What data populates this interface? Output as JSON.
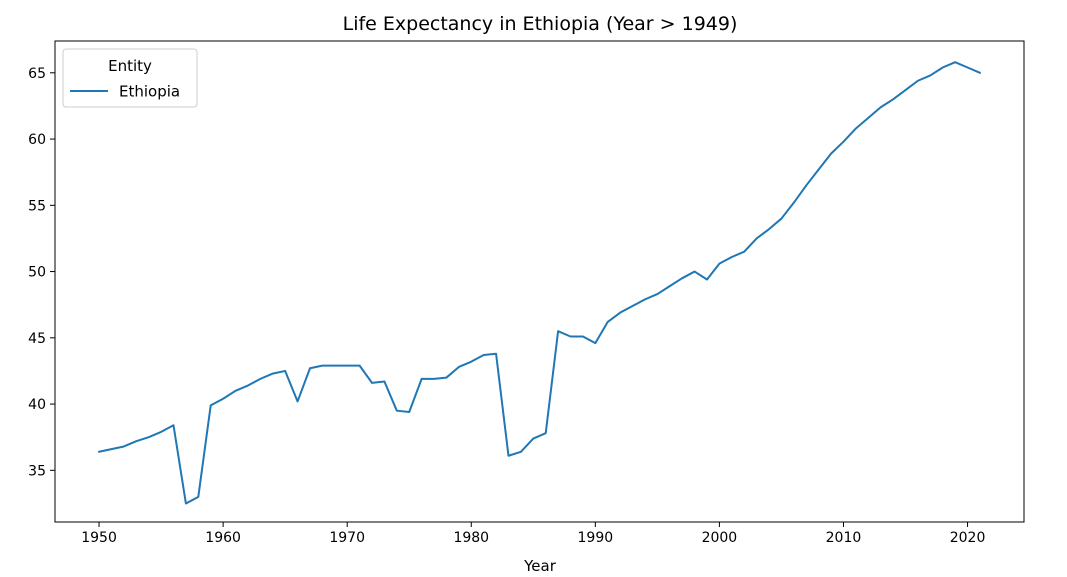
{
  "chart_data": {
    "type": "line",
    "title": "Life Expectancy in Ethiopia (Year > 1949)",
    "xlabel": "Year",
    "ylabel": "",
    "xlim": [
      1946.45,
      2024.55
    ],
    "ylim": [
      31.1,
      67.4
    ],
    "xticks": [
      1950,
      1960,
      1970,
      1980,
      1990,
      2000,
      2010,
      2020
    ],
    "yticks": [
      35,
      40,
      45,
      50,
      55,
      60,
      65
    ],
    "grid": false,
    "legend": {
      "title": "Entity",
      "position": "top-left"
    },
    "line_color": "#1f77b4",
    "series": [
      {
        "name": "Ethiopia",
        "x": [
          1950,
          1951,
          1952,
          1953,
          1954,
          1955,
          1956,
          1957,
          1958,
          1959,
          1960,
          1961,
          1962,
          1963,
          1964,
          1965,
          1966,
          1967,
          1968,
          1969,
          1970,
          1971,
          1972,
          1973,
          1974,
          1975,
          1976,
          1977,
          1978,
          1979,
          1980,
          1981,
          1982,
          1983,
          1984,
          1985,
          1986,
          1987,
          1988,
          1989,
          1990,
          1991,
          1992,
          1993,
          1994,
          1995,
          1996,
          1997,
          1998,
          1999,
          2000,
          2001,
          2002,
          2003,
          2004,
          2005,
          2006,
          2007,
          2008,
          2009,
          2010,
          2011,
          2012,
          2013,
          2014,
          2015,
          2016,
          2017,
          2018,
          2019,
          2020,
          2021
        ],
        "y": [
          36.4,
          36.6,
          36.8,
          37.2,
          37.5,
          37.9,
          38.4,
          32.5,
          33.0,
          39.9,
          40.4,
          41.0,
          41.4,
          41.9,
          42.3,
          42.5,
          40.2,
          42.7,
          42.9,
          42.9,
          42.9,
          42.9,
          41.6,
          41.7,
          39.5,
          39.4,
          41.9,
          41.9,
          42.0,
          42.8,
          43.2,
          43.7,
          43.8,
          36.1,
          36.4,
          37.4,
          37.8,
          45.5,
          45.1,
          45.1,
          44.6,
          46.2,
          46.9,
          47.4,
          47.9,
          48.3,
          48.9,
          49.5,
          50.0,
          49.4,
          50.6,
          51.1,
          51.5,
          52.5,
          53.2,
          54.0,
          55.2,
          56.5,
          57.7,
          58.9,
          59.8,
          60.8,
          61.6,
          62.4,
          63.0,
          63.7,
          64.4,
          64.8,
          65.4,
          65.8,
          65.4,
          65.0
        ]
      }
    ]
  }
}
